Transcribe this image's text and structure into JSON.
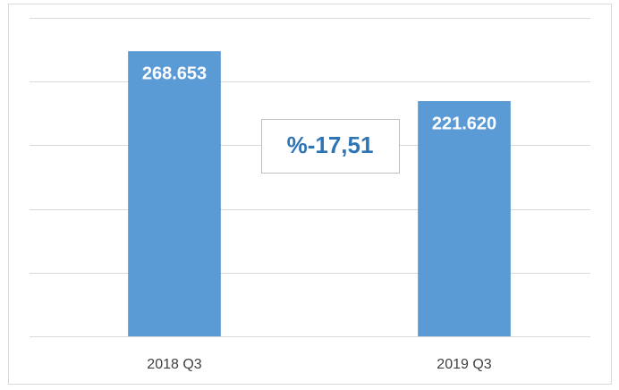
{
  "chart_data": {
    "type": "bar",
    "categories": [
      "2018 Q3",
      "2019 Q3"
    ],
    "values": [
      268653,
      221620
    ],
    "value_labels": [
      "268.653",
      "221.620"
    ],
    "color": "#5b9bd5",
    "ylim": [
      0,
      300000
    ],
    "yticks": [
      0,
      60000,
      120000,
      180000,
      240000,
      300000
    ],
    "grid": true,
    "annotation": "%-17,51"
  }
}
